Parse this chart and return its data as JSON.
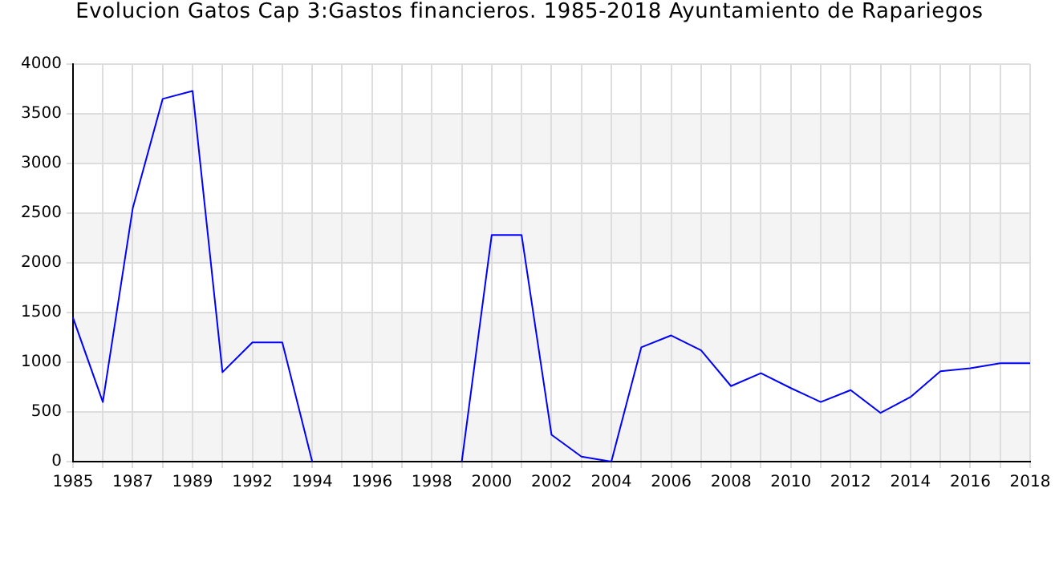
{
  "chart_data": {
    "type": "line",
    "title": "Evolucion Gatos Cap 3:Gastos financieros. 1985-2018 Ayuntamiento de Rapariegos",
    "categories": [
      "1985",
      null,
      "1987",
      null,
      "1989",
      null,
      "1992",
      null,
      "1994",
      null,
      "1996",
      null,
      "1998",
      null,
      "2000",
      null,
      "2002",
      null,
      "2004",
      null,
      "2006",
      null,
      "2008",
      null,
      "2010",
      null,
      "2012",
      null,
      "2014",
      null,
      "2016",
      null,
      "2018"
    ],
    "series": [
      {
        "color": "#0000ff",
        "values": [
          1450,
          600,
          2550,
          3650,
          3730,
          900,
          1200,
          1200,
          0,
          null,
          null,
          null,
          null,
          0,
          2280,
          2280,
          270,
          50,
          0,
          1150,
          1270,
          1120,
          760,
          890,
          740,
          600,
          720,
          490,
          650,
          910,
          940,
          990,
          990
        ]
      }
    ],
    "ylim": [
      0,
      4000
    ],
    "yticks": [
      0,
      500,
      1000,
      1500,
      2000,
      2500,
      3000,
      3500,
      4000
    ],
    "grid": true,
    "legend": false,
    "marker": "none"
  }
}
